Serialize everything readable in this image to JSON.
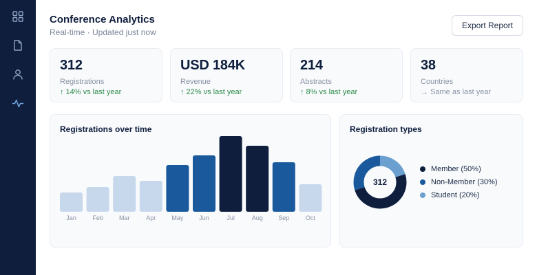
{
  "sidebar": {
    "items": [
      {
        "icon": "grid-icon",
        "active": false
      },
      {
        "icon": "document-icon",
        "active": false
      },
      {
        "icon": "user-icon",
        "active": false
      },
      {
        "icon": "activity-icon",
        "active": true
      }
    ]
  },
  "header": {
    "title": "Conference Analytics",
    "subtitle": "Real-time · Updated just now",
    "export_label": "Export Report"
  },
  "stats": [
    {
      "value": "312",
      "label": "Registrations",
      "change": "↑ 14% vs last year",
      "trend": "up"
    },
    {
      "value": "USD 184K",
      "label": "Revenue",
      "change": "↑ 22% vs last year",
      "trend": "up"
    },
    {
      "value": "214",
      "label": "Abstracts",
      "change": "↑ 8% vs last year",
      "trend": "up"
    },
    {
      "value": "38",
      "label": "Countries",
      "change": "→ Same as last year",
      "trend": "flat"
    }
  ],
  "registrations_panel": {
    "title": "Registrations over time"
  },
  "types_panel": {
    "title": "Registration types",
    "total": "312",
    "legend": [
      "Member (50%)",
      "Non-Member (30%)",
      "Student (20%)"
    ]
  },
  "colors": {
    "navy": "#0f1e3d",
    "blue": "#1a5a9c",
    "light": "#c8d8ec",
    "donut_light": "#6a9fd0"
  },
  "chart_data": [
    {
      "type": "bar",
      "title": "Registrations over time",
      "categories": [
        "Jan",
        "Feb",
        "Mar",
        "Apr",
        "May",
        "Jun",
        "Jul",
        "Aug",
        "Sep",
        "Oct"
      ],
      "values": [
        28,
        36,
        52,
        45,
        68,
        82,
        110,
        96,
        72,
        40
      ],
      "bar_colors": [
        "#c8d8ec",
        "#c8d8ec",
        "#c8d8ec",
        "#c8d8ec",
        "#1a5a9c",
        "#1a5a9c",
        "#0f1e3d",
        "#0f1e3d",
        "#1a5a9c",
        "#c8d8ec"
      ],
      "ylim": [
        0,
        110
      ],
      "grid": false
    },
    {
      "type": "pie",
      "title": "Registration types",
      "categories": [
        "Member",
        "Non-Member",
        "Student"
      ],
      "values": [
        50,
        30,
        20
      ],
      "colors": [
        "#0f1e3d",
        "#1a5a9c",
        "#6a9fd0"
      ],
      "center_label": "312"
    }
  ]
}
